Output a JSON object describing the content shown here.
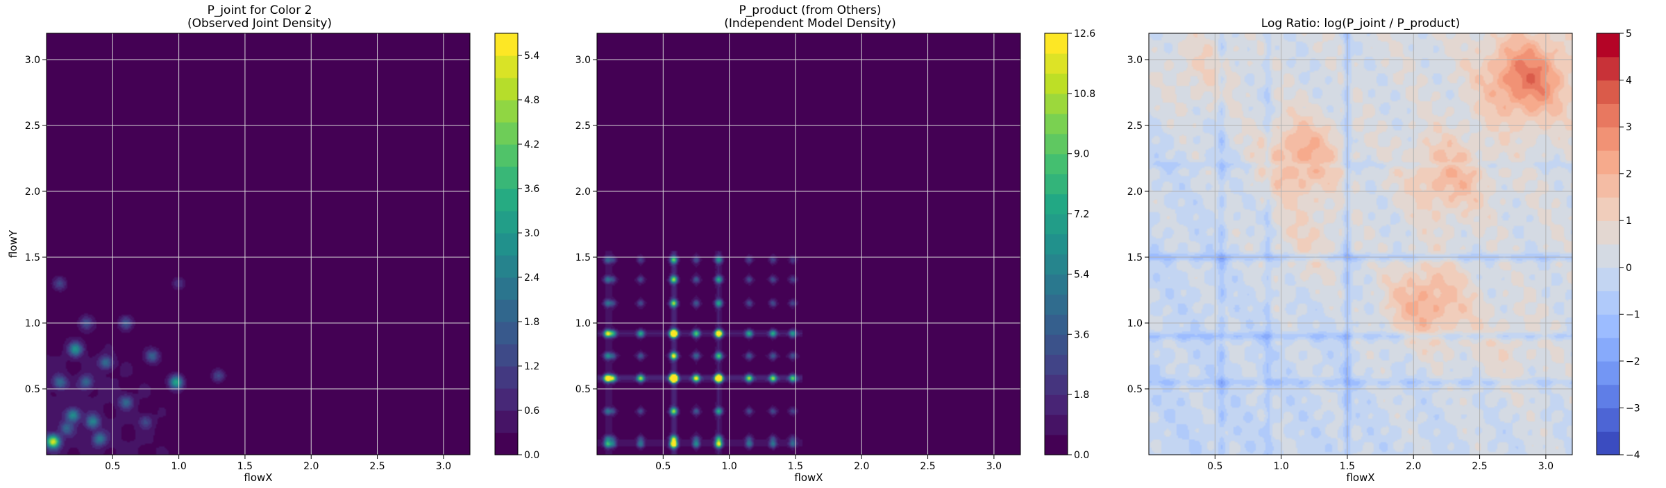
{
  "chart_data": [
    {
      "type": "heatmap",
      "title_line1": "P_joint for Color 2",
      "title_line2": "(Observed Joint Density)",
      "xlabel": "flowX",
      "ylabel": "flowY",
      "xlim": [
        0,
        3.2
      ],
      "ylim": [
        0,
        3.2
      ],
      "xticks": [
        "0.5",
        "1.0",
        "1.5",
        "2.0",
        "2.5",
        "3.0"
      ],
      "yticks": [
        "0.5",
        "1.0",
        "1.5",
        "2.0",
        "2.5",
        "3.0"
      ],
      "grid": true,
      "colormap": "viridis",
      "background": "#440154",
      "colorbar": {
        "min": 0.0,
        "max": 5.7,
        "levels": 19,
        "ticks": [
          "0.0",
          "0.6",
          "1.2",
          "1.8",
          "2.4",
          "3.0",
          "3.6",
          "4.2",
          "4.8",
          "5.4"
        ]
      },
      "hotspots": [
        {
          "x": 0.05,
          "y": 0.1,
          "value": 5.0
        },
        {
          "x": 0.2,
          "y": 0.3,
          "value": 2.5
        },
        {
          "x": 0.35,
          "y": 0.25,
          "value": 2.2
        },
        {
          "x": 0.1,
          "y": 0.55,
          "value": 1.8
        },
        {
          "x": 0.22,
          "y": 0.8,
          "value": 2.6
        },
        {
          "x": 0.3,
          "y": 0.55,
          "value": 1.6
        },
        {
          "x": 0.45,
          "y": 0.7,
          "value": 1.8
        },
        {
          "x": 0.4,
          "y": 0.12,
          "value": 2.0
        },
        {
          "x": 0.6,
          "y": 0.4,
          "value": 1.6
        },
        {
          "x": 0.6,
          "y": 1.0,
          "value": 1.4
        },
        {
          "x": 0.8,
          "y": 0.75,
          "value": 1.7
        },
        {
          "x": 0.98,
          "y": 0.55,
          "value": 3.2
        },
        {
          "x": 0.1,
          "y": 1.3,
          "value": 1.2
        },
        {
          "x": 0.3,
          "y": 1.0,
          "value": 1.2
        },
        {
          "x": 1.3,
          "y": 0.6,
          "value": 1.3
        },
        {
          "x": 0.75,
          "y": 0.25,
          "value": 1.0
        },
        {
          "x": 0.15,
          "y": 0.2,
          "value": 1.5
        },
        {
          "x": 1.0,
          "y": 1.3,
          "value": 0.9
        }
      ]
    },
    {
      "type": "heatmap",
      "title_line1": "P_product (from Others)",
      "title_line2": "(Independent Model Density)",
      "xlabel": "flowX",
      "ylabel": "",
      "xlim": [
        0,
        3.2
      ],
      "ylim": [
        0,
        3.2
      ],
      "xticks": [
        "0.5",
        "1.0",
        "1.5",
        "2.0",
        "2.5",
        "3.0"
      ],
      "yticks": [
        "0.5",
        "1.0",
        "1.5",
        "2.0",
        "2.5",
        "3.0"
      ],
      "grid": true,
      "colormap": "viridis",
      "background": "#440154",
      "colorbar": {
        "min": 0.0,
        "max": 12.6,
        "levels": 21,
        "ticks": [
          "0.0",
          "1.8",
          "3.6",
          "5.4",
          "7.2",
          "9.0",
          "10.8",
          "12.6"
        ]
      },
      "peak_positions": [
        0.08,
        0.12,
        0.33,
        0.58,
        0.75,
        0.92,
        1.15,
        1.33,
        1.48
      ],
      "peak_weights": [
        1.4,
        0.8,
        0.8,
        3.3,
        1.0,
        2.3,
        0.8,
        0.8,
        0.7
      ],
      "support_max": 1.5
    },
    {
      "type": "heatmap",
      "title_line1": "Log Ratio: log(P_joint / P_product)",
      "title_line2": "",
      "xlabel": "flowX",
      "ylabel": "",
      "xlim": [
        0,
        3.2
      ],
      "ylim": [
        0,
        3.2
      ],
      "xticks": [
        "0.5",
        "1.0",
        "1.5",
        "2.0",
        "2.5",
        "3.0"
      ],
      "yticks": [
        "0.5",
        "1.0",
        "1.5",
        "2.0",
        "2.5",
        "3.0"
      ],
      "grid": true,
      "colormap": "coolwarm",
      "colorbar": {
        "min": -4,
        "max": 5,
        "levels": 18,
        "ticks": [
          "−4",
          "−3",
          "−2",
          "−1",
          "0",
          "1",
          "2",
          "3",
          "4",
          "5"
        ]
      },
      "hot_regions": [
        {
          "x": 2.85,
          "y": 2.85,
          "value": 2.8
        },
        {
          "x": 2.25,
          "y": 2.1,
          "value": 1.6
        },
        {
          "x": 1.15,
          "y": 2.25,
          "value": 2.0
        },
        {
          "x": 2.1,
          "y": 1.15,
          "value": 2.0
        },
        {
          "x": 1.2,
          "y": 1.6,
          "value": 0.8
        },
        {
          "x": 0.4,
          "y": 2.9,
          "value": 0.8
        },
        {
          "x": 2.7,
          "y": 0.8,
          "value": 0.6
        }
      ],
      "cold_bands": [
        {
          "axis": "y",
          "at": 1.5,
          "value": -1.1
        },
        {
          "axis": "x",
          "at": 1.5,
          "value": -1.1
        },
        {
          "axis": "y",
          "at": 0.9,
          "value": -0.9
        },
        {
          "axis": "y",
          "at": 0.55,
          "value": -0.7
        },
        {
          "axis": "x",
          "at": 0.55,
          "value": -0.7
        },
        {
          "axis": "x",
          "at": 0.9,
          "value": -0.7
        },
        {
          "axis": "y",
          "at": 2.2,
          "value": -0.5
        }
      ]
    }
  ]
}
